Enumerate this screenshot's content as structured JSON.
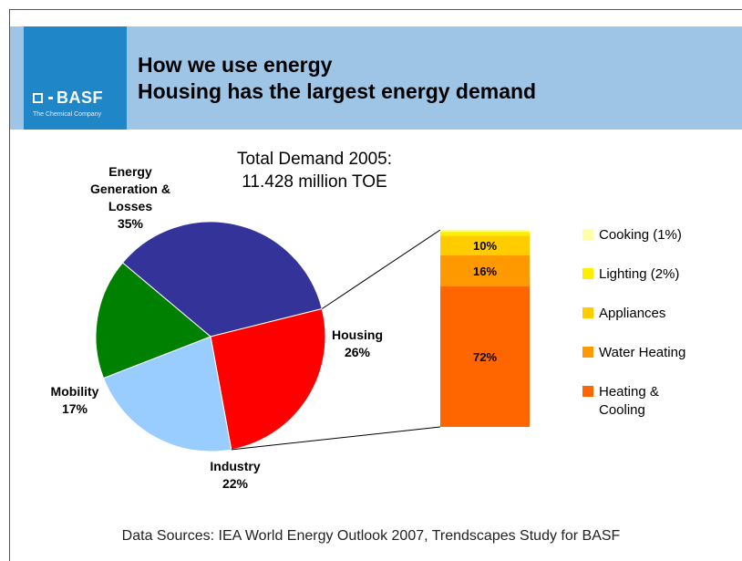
{
  "header": {
    "title_line1": "How we use energy",
    "title_line2": "Housing has the largest energy demand",
    "logo_text": "BASF",
    "logo_tagline": "The Chemical Company",
    "colors": {
      "bar": "#9fc5e6",
      "logo": "#1f86c8"
    }
  },
  "footer": "Data Sources: IEA World Energy Outlook 2007, Trendscapes Study for BASF",
  "chart_data": [
    {
      "type": "pie",
      "title": [
        "Total Demand 2005:",
        "11.428 million TOE"
      ],
      "slices": [
        {
          "label": [
            "Energy",
            "Generation &",
            "Losses",
            "35%"
          ],
          "value": 35,
          "color": "#333399"
        },
        {
          "label": [
            "Housing",
            "26%"
          ],
          "value": 26,
          "color": "#ff0000"
        },
        {
          "label": [
            "Industry",
            "22%"
          ],
          "value": 22,
          "color": "#99ccff"
        },
        {
          "label": [
            "Mobility",
            "17%"
          ],
          "value": 17,
          "color": "#008000"
        }
      ]
    },
    {
      "type": "bar",
      "stacked": true,
      "breakdown_of": "Housing",
      "segments": [
        {
          "name": "Cooking (1%)",
          "value": 1,
          "label": "",
          "color": "#ffffaa"
        },
        {
          "name": "Lighting (2%)",
          "value": 2,
          "label": "",
          "color": "#ffee00"
        },
        {
          "name": "Appliances",
          "value": 10,
          "label": "10%",
          "color": "#ffcc00"
        },
        {
          "name": "Water Heating",
          "value": 16,
          "label": "16%",
          "color": "#ff9900"
        },
        {
          "name": "Heating & Cooling",
          "value": 72,
          "label": "72%",
          "color": "#ff6600"
        }
      ],
      "legend": [
        {
          "lines": [
            "Cooking (1%)"
          ],
          "color": "#ffffaa"
        },
        {
          "lines": [
            "Lighting (2%)"
          ],
          "color": "#ffee00"
        },
        {
          "lines": [
            "Appliances"
          ],
          "color": "#ffcc00"
        },
        {
          "lines": [
            "Water Heating"
          ],
          "color": "#ff9900"
        },
        {
          "lines": [
            "Heating &",
            "Cooling"
          ],
          "color": "#ff6600"
        }
      ]
    }
  ]
}
